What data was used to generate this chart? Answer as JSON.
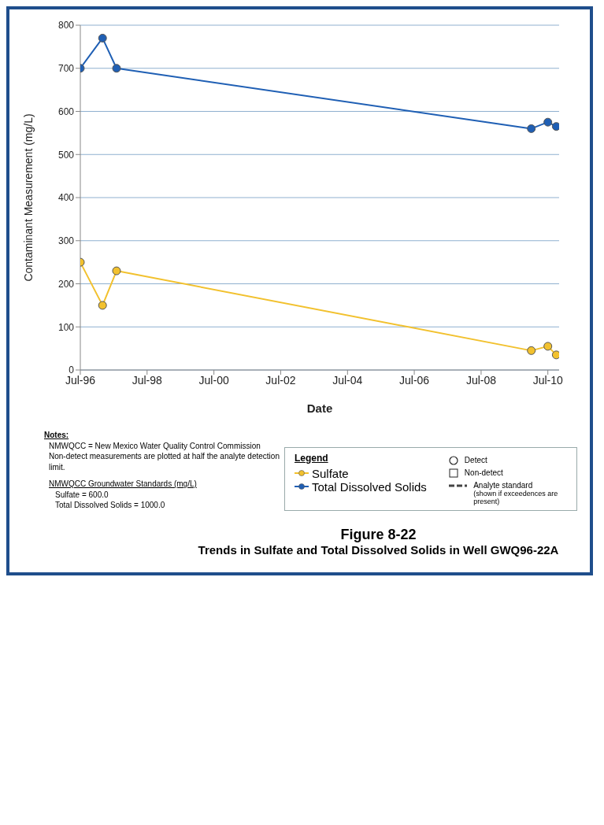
{
  "chart_data": {
    "type": "line",
    "title": "Figure 8-22",
    "subtitle": "Trends in Sulfate and Total Dissolved Solids in Well GWQ96-22A",
    "xlabel": "Date",
    "ylabel": "Contaminant Measurement (mg/L)",
    "legend_title": "Legend",
    "legend": "bottom right",
    "grid": "y",
    "marker": "circle",
    "line_style": "solid",
    "xlim": [
      "1996-07",
      "2010-11"
    ],
    "xticks": [
      {
        "value": "1996-07",
        "label": "Jul-96"
      },
      {
        "value": "1998-07",
        "label": "Jul-98"
      },
      {
        "value": "2000-07",
        "label": "Jul-00"
      },
      {
        "value": "2002-07",
        "label": "Jul-02"
      },
      {
        "value": "2004-07",
        "label": "Jul-04"
      },
      {
        "value": "2006-07",
        "label": "Jul-06"
      },
      {
        "value": "2008-07",
        "label": "Jul-08"
      },
      {
        "value": "2010-07",
        "label": "Jul-10"
      }
    ],
    "ylim": [
      0,
      800
    ],
    "yticks": [
      0,
      100,
      200,
      300,
      400,
      500,
      600,
      700,
      800
    ],
    "series": [
      {
        "name": "Sulfate",
        "color": "#f2c12e",
        "x": [
          "1996-07",
          "1997-03",
          "1997-08",
          "2010-01",
          "2010-07",
          "2010-10"
        ],
        "values": [
          250,
          150,
          230,
          45,
          55,
          35
        ]
      },
      {
        "name": "Total Dissolved Solids",
        "color": "#1f5fb4",
        "x": [
          "1996-07",
          "1997-03",
          "1997-08",
          "2010-01",
          "2010-07",
          "2010-10"
        ],
        "values": [
          700,
          770,
          700,
          560,
          575,
          565
        ]
      }
    ],
    "annotations": [
      "Detect",
      "Non-detect",
      "Analyte standard",
      "(shown if exceedences are present)",
      "Notes:",
      "NMWQCC = New Mexico Water Quality Control Commission",
      "Non-detect measurements are plotted at half the analyte detection limit.",
      "NMWQCC Groundwater Standards (mg/L)",
      "Sulfate = 600.0",
      "Total Dissolved Solids = 1000.0"
    ]
  }
}
